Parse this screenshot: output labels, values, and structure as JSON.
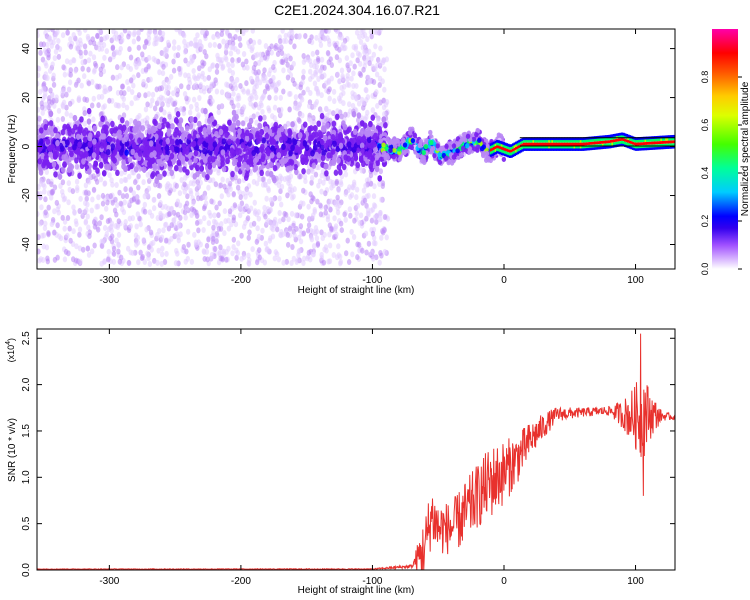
{
  "title": "C2E1.2024.304.16.07.R21",
  "colorbar": {
    "label": "Normalized spectral amplitude",
    "ticks": [
      "0.0",
      "0.2",
      "0.4",
      "0.6",
      "0.8"
    ]
  },
  "chart_data": [
    {
      "type": "heatmap",
      "xlabel": "Height of straight line (km)",
      "ylabel": "Frequency (Hz)",
      "xlim": [
        -355,
        130
      ],
      "ylim": [
        -50,
        48
      ],
      "x_ticks": [
        "-300",
        "-200",
        "-100",
        "0",
        "100"
      ],
      "y_ticks": [
        "-40",
        "-20",
        "0",
        "20",
        "40"
      ],
      "colormap": [
        "#ffffff",
        "#e2ccff",
        "#b987f5",
        "#7a1ff0",
        "#3c00e6",
        "#0000ff",
        "#00c8ff",
        "#00ff66",
        "#aaff00",
        "#ffee00",
        "#ff9900",
        "#ff0000",
        "#ff00a0"
      ],
      "description_regions": [
        {
          "x_range": [
            -355,
            -95
          ],
          "freq_spread": 48,
          "core_halfwidth": 10,
          "amplitude": 0.15
        },
        {
          "x_range": [
            -95,
            -40
          ],
          "freq_spread": 8,
          "core_halfwidth": 4,
          "amplitude": 0.35
        },
        {
          "x_range": [
            -40,
            130
          ],
          "freq_spread": 2,
          "core_halfwidth": 2,
          "amplitude": 0.9
        }
      ],
      "ridge_center_hz": [
        [
          -95,
          0
        ],
        [
          -80,
          -2
        ],
        [
          -70,
          3
        ],
        [
          -62,
          -3
        ],
        [
          -55,
          2
        ],
        [
          -48,
          -4
        ],
        [
          -40,
          -2
        ],
        [
          -30,
          1
        ],
        [
          -20,
          2
        ],
        [
          -12,
          -2
        ],
        [
          -5,
          0
        ],
        [
          5,
          -2
        ],
        [
          15,
          1
        ],
        [
          60,
          1
        ],
        [
          80,
          2
        ],
        [
          90,
          3
        ],
        [
          100,
          1
        ],
        [
          130,
          2
        ]
      ]
    },
    {
      "type": "line",
      "xlabel": "Height of straight line (km)",
      "ylabel": "SNR (10 * v/v)",
      "y_multiplier": "(x10^4)",
      "xlim": [
        -355,
        130
      ],
      "ylim": [
        0,
        2.6
      ],
      "x_ticks": [
        "-300",
        "-200",
        "-100",
        "0",
        "100"
      ],
      "y_ticks": [
        "0.0",
        "0.5",
        "1.0",
        "1.5",
        "2.0",
        "2.5"
      ],
      "series": [
        {
          "color": "#e8312d",
          "envelope": {
            "x": [
              -355,
              -100,
              -70,
              -60,
              -55,
              -50,
              -40,
              -30,
              -20,
              -10,
              0,
              10,
              20,
              30,
              40,
              60,
              80,
              90,
              100,
              105,
              110,
              120,
              130
            ],
            "y": [
              0.01,
              0.01,
              0.04,
              0.25,
              0.6,
              0.45,
              0.45,
              0.6,
              0.8,
              0.95,
              1.05,
              1.2,
              1.4,
              1.55,
              1.68,
              1.7,
              1.72,
              1.68,
              1.65,
              1.7,
              1.68,
              1.66,
              1.65
            ]
          },
          "noise_amplitude": {
            "x": [
              -355,
              -100,
              -70,
              -60,
              -50,
              -40,
              -30,
              -20,
              -10,
              0,
              20,
              40,
              60,
              80,
              90,
              100,
              105,
              110,
              120,
              130
            ],
            "y": [
              0.003,
              0.005,
              0.02,
              0.35,
              0.3,
              0.28,
              0.35,
              0.35,
              0.4,
              0.35,
              0.2,
              0.08,
              0.05,
              0.05,
              0.15,
              0.35,
              0.55,
              0.3,
              0.05,
              0.03
            ]
          },
          "peak_max": [
            104,
            2.55
          ],
          "dip_min": [
            106,
            0.8
          ]
        }
      ]
    }
  ]
}
